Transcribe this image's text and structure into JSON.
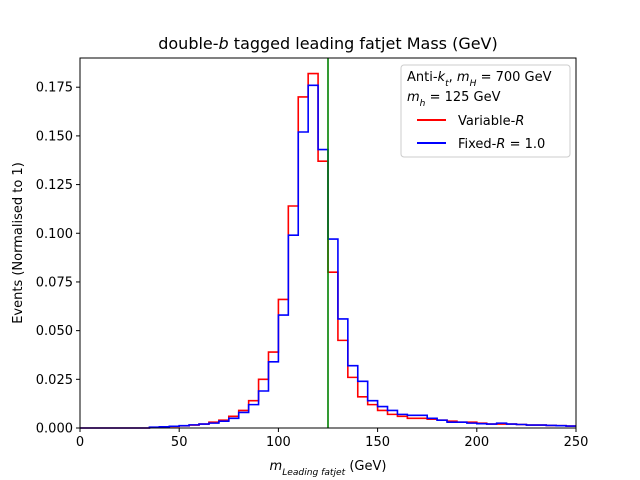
{
  "chart_data": {
    "type": "line",
    "style": "step-histogram",
    "title_parts": [
      {
        "text": "double-",
        "italic": false
      },
      {
        "text": "b",
        "italic": true
      },
      {
        "text": " tagged leading fatjet Mass (GeV)",
        "italic": false
      }
    ],
    "xlabel_parts": [
      {
        "text": "m",
        "italic": true,
        "sub": false
      },
      {
        "text": "Leading fatjet",
        "italic": true,
        "sub": true
      },
      {
        "text": " (GeV)",
        "italic": false,
        "sub": false
      }
    ],
    "ylabel": "Events (Normalised to 1)",
    "xlim": [
      0,
      250
    ],
    "ylim": [
      0,
      0.19
    ],
    "xticks": [
      0,
      50,
      100,
      150,
      200,
      250
    ],
    "xtick_labels": [
      "0",
      "50",
      "100",
      "150",
      "200",
      "250"
    ],
    "yticks": [
      0.0,
      0.025,
      0.05,
      0.075,
      0.1,
      0.125,
      0.15,
      0.175
    ],
    "ytick_labels": [
      "0.000",
      "0.025",
      "0.050",
      "0.075",
      "0.100",
      "0.125",
      "0.150",
      "0.175"
    ],
    "bin_edges": [
      0,
      5,
      10,
      15,
      20,
      25,
      30,
      35,
      40,
      45,
      50,
      55,
      60,
      65,
      70,
      75,
      80,
      85,
      90,
      95,
      100,
      105,
      110,
      115,
      120,
      125,
      130,
      135,
      140,
      145,
      150,
      155,
      160,
      165,
      170,
      175,
      180,
      185,
      190,
      195,
      200,
      205,
      210,
      215,
      220,
      225,
      230,
      235,
      240,
      245,
      250
    ],
    "series": [
      {
        "name": "Variable-R",
        "color": "#ff0000",
        "values": [
          0.0,
          0.0,
          0.0,
          0.0,
          0.0,
          0.0,
          0.0,
          0.0003,
          0.0005,
          0.0008,
          0.0011,
          0.0015,
          0.002,
          0.003,
          0.004,
          0.006,
          0.009,
          0.014,
          0.025,
          0.039,
          0.066,
          0.114,
          0.17,
          0.182,
          0.137,
          0.08,
          0.045,
          0.026,
          0.016,
          0.012,
          0.009,
          0.007,
          0.006,
          0.005,
          0.005,
          0.0045,
          0.004,
          0.0035,
          0.003,
          0.003,
          0.0025,
          0.002,
          0.002,
          0.002,
          0.0018,
          0.0015,
          0.0015,
          0.0013,
          0.0012,
          0.001
        ]
      },
      {
        "name": "Fixed-R = 1.0",
        "color": "#0000ff",
        "values": [
          0.0,
          0.0,
          0.0,
          0.0,
          0.0,
          0.0,
          0.0,
          0.0004,
          0.0006,
          0.0009,
          0.0012,
          0.0016,
          0.002,
          0.0025,
          0.0035,
          0.005,
          0.008,
          0.012,
          0.019,
          0.034,
          0.058,
          0.099,
          0.152,
          0.176,
          0.143,
          0.097,
          0.056,
          0.032,
          0.024,
          0.014,
          0.011,
          0.009,
          0.007,
          0.0065,
          0.0065,
          0.005,
          0.004,
          0.003,
          0.003,
          0.0025,
          0.0022,
          0.002,
          0.0025,
          0.002,
          0.0018,
          0.0015,
          0.0015,
          0.0013,
          0.0012,
          0.001
        ]
      }
    ],
    "vline": {
      "x": 125,
      "color": "#008000"
    },
    "legend": {
      "placement": "top-right",
      "header_line1": [
        {
          "text": "Anti-",
          "italic": false,
          "sub": false
        },
        {
          "text": "k",
          "italic": true,
          "sub": false
        },
        {
          "text": "t",
          "italic": true,
          "sub": true
        },
        {
          "text": ", ",
          "italic": false,
          "sub": false
        },
        {
          "text": "m",
          "italic": true,
          "sub": false
        },
        {
          "text": "H",
          "italic": true,
          "sub": true
        },
        {
          "text": " = 700 GeV",
          "italic": false,
          "sub": false
        }
      ],
      "header_line2": [
        {
          "text": "m",
          "italic": true,
          "sub": false
        },
        {
          "text": "h",
          "italic": true,
          "sub": true
        },
        {
          "text": " = 125 GeV",
          "italic": false,
          "sub": false
        }
      ],
      "entries": [
        {
          "parts": [
            {
              "text": "Variable-",
              "italic": false,
              "sub": false
            },
            {
              "text": "R",
              "italic": true,
              "sub": false
            }
          ],
          "color": "#ff0000"
        },
        {
          "parts": [
            {
              "text": "Fixed-",
              "italic": false,
              "sub": false
            },
            {
              "text": "R",
              "italic": true,
              "sub": false
            },
            {
              "text": " = 1.0",
              "italic": false,
              "sub": false
            }
          ],
          "color": "#0000ff"
        }
      ]
    }
  }
}
